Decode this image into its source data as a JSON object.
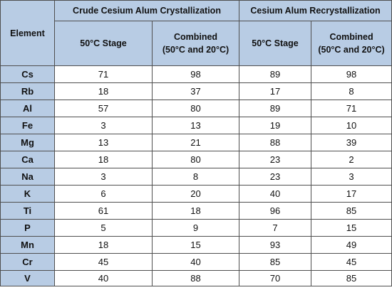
{
  "table": {
    "element_header": "Element",
    "group_headers": [
      "Crude Cesium Alum Crystallization",
      "Cesium Alum Recrystallization"
    ],
    "sub_headers": [
      {
        "line1": "50°C Stage",
        "line2": ""
      },
      {
        "line1": "Combined",
        "line2": "(50°C and 20°C)"
      },
      {
        "line1": "50°C Stage",
        "line2": ""
      },
      {
        "line1": "Combined",
        "line2": "(50°C and 20°C)"
      }
    ],
    "rows": [
      {
        "element": "Cs",
        "values": [
          "71",
          "98",
          "89",
          "98"
        ]
      },
      {
        "element": "Rb",
        "values": [
          "18",
          "37",
          "17",
          "8"
        ]
      },
      {
        "element": "Al",
        "values": [
          "57",
          "80",
          "89",
          "71"
        ]
      },
      {
        "element": "Fe",
        "values": [
          "3",
          "13",
          "19",
          "10"
        ]
      },
      {
        "element": "Mg",
        "values": [
          "13",
          "21",
          "88",
          "39"
        ]
      },
      {
        "element": "Ca",
        "values": [
          "18",
          "80",
          "23",
          "2"
        ]
      },
      {
        "element": "Na",
        "values": [
          "3",
          "8",
          "23",
          "3"
        ]
      },
      {
        "element": "K",
        "values": [
          "6",
          "20",
          "40",
          "17"
        ]
      },
      {
        "element": "Ti",
        "values": [
          "61",
          "18",
          "96",
          "85"
        ]
      },
      {
        "element": "P",
        "values": [
          "5",
          "9",
          "7",
          "15"
        ]
      },
      {
        "element": "Mn",
        "values": [
          "18",
          "15",
          "93",
          "49"
        ]
      },
      {
        "element": "Cr",
        "values": [
          "45",
          "40",
          "85",
          "45"
        ]
      },
      {
        "element": "V",
        "values": [
          "40",
          "88",
          "70",
          "85"
        ]
      }
    ]
  },
  "colors": {
    "header_background": "#b8cce4",
    "cell_background": "#ffffff",
    "border": "#4f4f4f"
  }
}
